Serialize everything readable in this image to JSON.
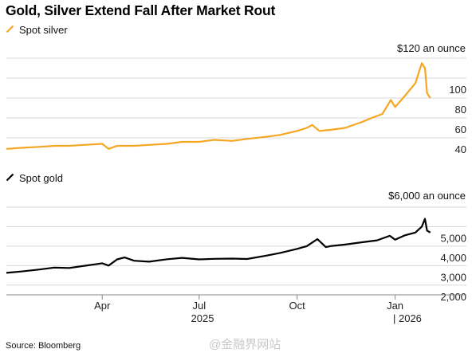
{
  "title": "Gold, Silver Extend Fall After Market Rout",
  "source": "Source: Bloomberg",
  "watermark": "@金融界网站",
  "colors": {
    "silver": "#f5a623",
    "gold": "#000000",
    "grid": "#d9d9d9",
    "axis": "#888888"
  },
  "x_axis": {
    "months": [
      "Apr",
      "Jul",
      "Oct",
      "Jan"
    ],
    "years": [
      "2025",
      "| 2026"
    ]
  },
  "chart_data": [
    {
      "type": "line",
      "legend": "Spot silver",
      "unit_label": "$120 an ounce",
      "color": "#f5a623",
      "yticks": [
        40,
        60,
        80,
        100,
        120
      ],
      "ytick_labels": [
        "40",
        "60",
        "80",
        "100",
        ""
      ],
      "ylim": [
        20,
        120
      ],
      "x": [
        "2025-01-01",
        "2025-01-15",
        "2025-02-01",
        "2025-02-15",
        "2025-03-01",
        "2025-03-15",
        "2025-04-01",
        "2025-04-07",
        "2025-04-15",
        "2025-05-01",
        "2025-05-15",
        "2025-06-01",
        "2025-06-15",
        "2025-07-01",
        "2025-07-15",
        "2025-08-01",
        "2025-08-15",
        "2025-09-01",
        "2025-09-15",
        "2025-10-01",
        "2025-10-10",
        "2025-10-15",
        "2025-10-22",
        "2025-11-01",
        "2025-11-15",
        "2025-12-01",
        "2025-12-10",
        "2025-12-20",
        "2025-12-28",
        "2026-01-01",
        "2026-01-10",
        "2026-01-20",
        "2026-01-26",
        "2026-01-29",
        "2026-01-31",
        "2026-02-03"
      ],
      "y": [
        29,
        30,
        31,
        32,
        32,
        33,
        34,
        29,
        32,
        32,
        33,
        34,
        36,
        36,
        38,
        37,
        39,
        41,
        43,
        47,
        50,
        53,
        47,
        48,
        50,
        56,
        60,
        64,
        78,
        71,
        82,
        95,
        115,
        110,
        85,
        80
      ]
    },
    {
      "type": "line",
      "legend": "Spot gold",
      "unit_label": "$6,000 an ounce",
      "color": "#000000",
      "yticks": [
        2000,
        3000,
        4000,
        5000,
        6000
      ],
      "ytick_labels": [
        "2,000",
        "3,000",
        "4,000",
        "5,000",
        ""
      ],
      "ylim": [
        1500,
        6000
      ],
      "x": [
        "2025-01-01",
        "2025-01-15",
        "2025-02-01",
        "2025-02-15",
        "2025-03-01",
        "2025-03-15",
        "2025-04-01",
        "2025-04-07",
        "2025-04-15",
        "2025-04-22",
        "2025-05-01",
        "2025-05-15",
        "2025-06-01",
        "2025-06-15",
        "2025-07-01",
        "2025-07-15",
        "2025-08-01",
        "2025-08-15",
        "2025-09-01",
        "2025-09-15",
        "2025-10-01",
        "2025-10-10",
        "2025-10-20",
        "2025-10-28",
        "2025-11-01",
        "2025-11-15",
        "2025-12-01",
        "2025-12-15",
        "2025-12-27",
        "2026-01-01",
        "2026-01-10",
        "2026-01-20",
        "2026-01-26",
        "2026-01-29",
        "2026-01-31",
        "2026-02-03"
      ],
      "y": [
        2630,
        2700,
        2800,
        2900,
        2880,
        2990,
        3120,
        3000,
        3320,
        3420,
        3250,
        3200,
        3330,
        3400,
        3320,
        3350,
        3360,
        3340,
        3500,
        3650,
        3860,
        4000,
        4360,
        3950,
        4000,
        4080,
        4200,
        4300,
        4530,
        4330,
        4550,
        4700,
        5000,
        5400,
        4800,
        4700
      ]
    }
  ]
}
